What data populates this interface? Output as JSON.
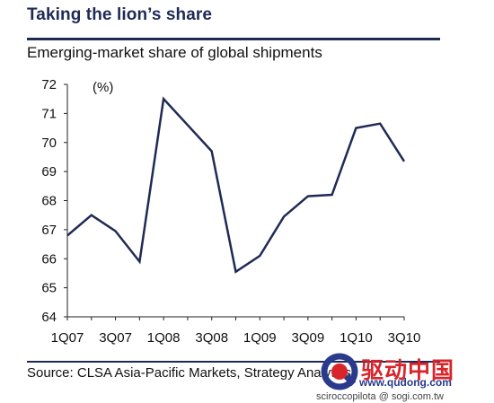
{
  "header": {
    "title": "Taking the lion’s share",
    "subtitle": "Emerging-market share of global shipments"
  },
  "chart_data": {
    "type": "line",
    "unit_label": "(%)",
    "ylim": [
      64,
      72
    ],
    "yticks": [
      64,
      65,
      66,
      67,
      68,
      69,
      70,
      71,
      72
    ],
    "x": [
      "1Q07",
      "2Q07",
      "3Q07",
      "4Q07",
      "1Q08",
      "2Q08",
      "3Q08",
      "4Q08",
      "1Q09",
      "2Q09",
      "3Q09",
      "4Q09",
      "1Q10",
      "2Q10",
      "3Q10"
    ],
    "xtick_labels": [
      "1Q07",
      "3Q07",
      "1Q08",
      "3Q08",
      "1Q09",
      "3Q09",
      "1Q10",
      "3Q10"
    ],
    "series": [
      {
        "values": [
          66.8,
          67.5,
          66.95,
          65.9,
          71.5,
          70.6,
          69.7,
          65.55,
          66.1,
          67.45,
          68.15,
          68.2,
          70.5,
          70.65,
          69.35
        ]
      }
    ],
    "line_color": "#1f2a55",
    "grid": false
  },
  "footer": {
    "source": "Source: CLSA Asia-Pacific Markets, Strategy Analytics"
  },
  "watermark": {
    "brand": "驱动中国",
    "url": "www.qudong.com",
    "credit": "sciroccopilota   @ sogi.com.tw"
  }
}
